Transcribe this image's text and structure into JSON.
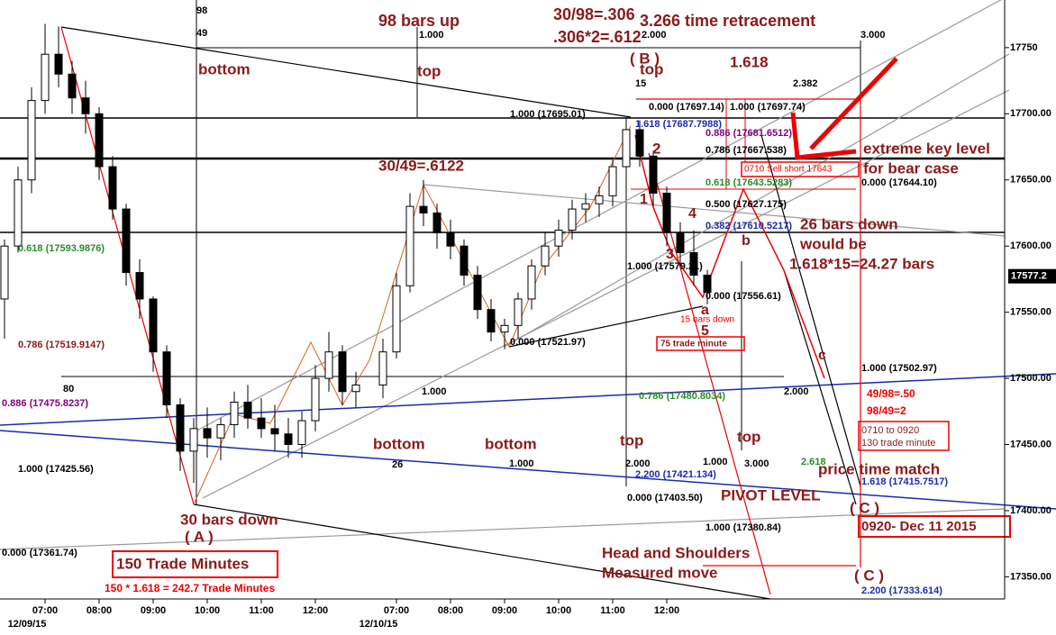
{
  "chart_data": {
    "type": "candlestick",
    "categories": [
      null,
      null,
      null,
      "07:00",
      null,
      null,
      null,
      "08:00",
      null,
      null,
      null,
      "09:00",
      null,
      null,
      null,
      "10:00",
      null,
      null,
      null,
      "11:00",
      null,
      null,
      null,
      "12:00",
      null,
      null,
      null,
      null,
      null,
      "07:00",
      null,
      null,
      null,
      "08:00",
      null,
      null,
      null,
      "09:00",
      null,
      null,
      null,
      "10:00",
      null,
      null,
      null,
      "11:00",
      null,
      null,
      null,
      "12:00",
      null,
      null,
      null
    ],
    "date_labels": [
      "12/09/15",
      "12/10/15"
    ],
    "open": [
      17560,
      17600,
      17650,
      17710,
      17745,
      17730,
      17712,
      17700,
      17660,
      17628,
      17580,
      17560,
      17520,
      17480,
      17445,
      17462,
      17455,
      17465,
      17482,
      17470,
      17462,
      17458,
      17450,
      17468,
      17500,
      17520,
      17490,
      null,
      17495,
      17520,
      17570,
      17630,
      17625,
      17610,
      17600,
      17578,
      17552,
      17535,
      17540,
      17560,
      17585,
      17600,
      17612,
      17628,
      17632,
      17638,
      17660,
      17688,
      17668,
      17640,
      17610,
      17595,
      17578
    ],
    "high": [
      17605,
      17660,
      17720,
      17768,
      17766,
      17740,
      17725,
      17705,
      17668,
      17632,
      17590,
      17562,
      17525,
      17485,
      17470,
      17478,
      17470,
      17490,
      17495,
      17485,
      17480,
      17470,
      17475,
      17510,
      17535,
      17525,
      17505,
      null,
      17530,
      17580,
      17640,
      17650,
      17632,
      17620,
      17605,
      17585,
      17560,
      17545,
      17565,
      17590,
      17610,
      17620,
      17635,
      17640,
      17645,
      17665,
      17697,
      17695,
      17672,
      17645,
      17618,
      17612,
      17582
    ],
    "low": [
      17530,
      17595,
      17640,
      17700,
      17720,
      17700,
      17685,
      17650,
      17620,
      17570,
      17545,
      17505,
      17470,
      17430,
      17421,
      17440,
      17438,
      17455,
      17462,
      17455,
      17445,
      17440,
      17440,
      17460,
      17490,
      17480,
      17478,
      null,
      17485,
      17515,
      17565,
      17615,
      17598,
      17590,
      17570,
      17545,
      17528,
      17522,
      17530,
      17552,
      17578,
      17592,
      17605,
      17618,
      17622,
      17630,
      17655,
      17660,
      17630,
      17600,
      17585,
      17570,
      17556
    ],
    "close": [
      17600,
      17650,
      17710,
      17745,
      17730,
      17712,
      17700,
      17660,
      17628,
      17580,
      17560,
      17520,
      17480,
      17445,
      17462,
      17455,
      17465,
      17482,
      17470,
      17462,
      17458,
      17450,
      17468,
      17500,
      17520,
      17490,
      17495,
      null,
      17520,
      17570,
      17630,
      17625,
      17610,
      17600,
      17578,
      17552,
      17535,
      17540,
      17560,
      17585,
      17600,
      17612,
      17628,
      17632,
      17638,
      17660,
      17688,
      17668,
      17640,
      17610,
      17595,
      17578,
      17565
    ],
    "up_color": "#ffffff",
    "down_color": "#000000",
    "ylim": [
      17306,
      17786
    ],
    "yticks": [
      {
        "value": 17350,
        "label": "17350.00"
      },
      {
        "value": 17400,
        "label": "17400.00"
      },
      {
        "value": 17450,
        "label": "17450.00"
      },
      {
        "value": 17500,
        "label": "17500.00"
      },
      {
        "value": 17550,
        "label": "17550.00"
      },
      {
        "value": 17600,
        "label": "17600.00"
      },
      {
        "value": 17650,
        "label": "17650.00"
      },
      {
        "value": 17700,
        "label": "17700.00"
      },
      17750
    ],
    "last_price": 17577.2,
    "annotations": [
      "98 bars up",
      "30/98=.306",
      ".306*2=.612",
      "3.266 time retracement",
      "( B )",
      "top",
      "1.618",
      "bottom",
      "top",
      "30/49=.6122",
      "2",
      "1",
      "4",
      "3",
      "5",
      "a",
      "b",
      "c",
      "extreme key level",
      "for bear case",
      "26 bars down",
      "would be",
      "1.618*15=24.27 bars",
      "bottom",
      "bottom",
      "top",
      "top",
      "price time match",
      "PIVOT LEVEL",
      "( C )",
      "( C )",
      "30 bars down",
      "( A )",
      "Head and Shoulders",
      "Measured move",
      "150 Trade Minutes",
      "150 * 1.618 = 242.7 Trade Minutes",
      "0920- Dec 11 2015",
      "0710 to 0920",
      "130 trade minute",
      "49/98=.50",
      "98/49=2",
      "15 bars down",
      "75 trade minute",
      "0710 Sell short 17643",
      "0.618 (17593.9876)",
      "0.786 (17519.9147)",
      "0.886 (17475.8237)",
      "1.000 (17425.56)",
      "0.000 (17361.74)",
      "1.000 (17695.01)",
      "1.618 (17687.7988)",
      "0.886 (17681.6512)",
      "0.786 (17667.538)",
      "0.618 (17643.5283)",
      "0.500 (17627.175)",
      "0.382 (17610.5217)",
      "1.000 (17579.21)",
      "0.000 (17556.61)",
      "0.000 (17521.97)",
      "0.786 (17480.8034)",
      "1.000 (17502.97)",
      "0.000 (17644.10)",
      "1.618 (17415.7517)",
      "2.200 (17421.134)",
      "0.000 (17403.50)",
      "1.000 (17380.84)",
      "2.200 (17333.614)",
      "0.000 (17697.14)",
      "1.000 (17697.74)",
      "98",
      "49",
      "1.000",
      "2.000",
      "3.000",
      "1.000",
      "2.000",
      "80",
      "26",
      "1.000",
      "2.000",
      "1.000",
      "3.000",
      "2.618",
      "15",
      "2.382"
    ]
  }
}
